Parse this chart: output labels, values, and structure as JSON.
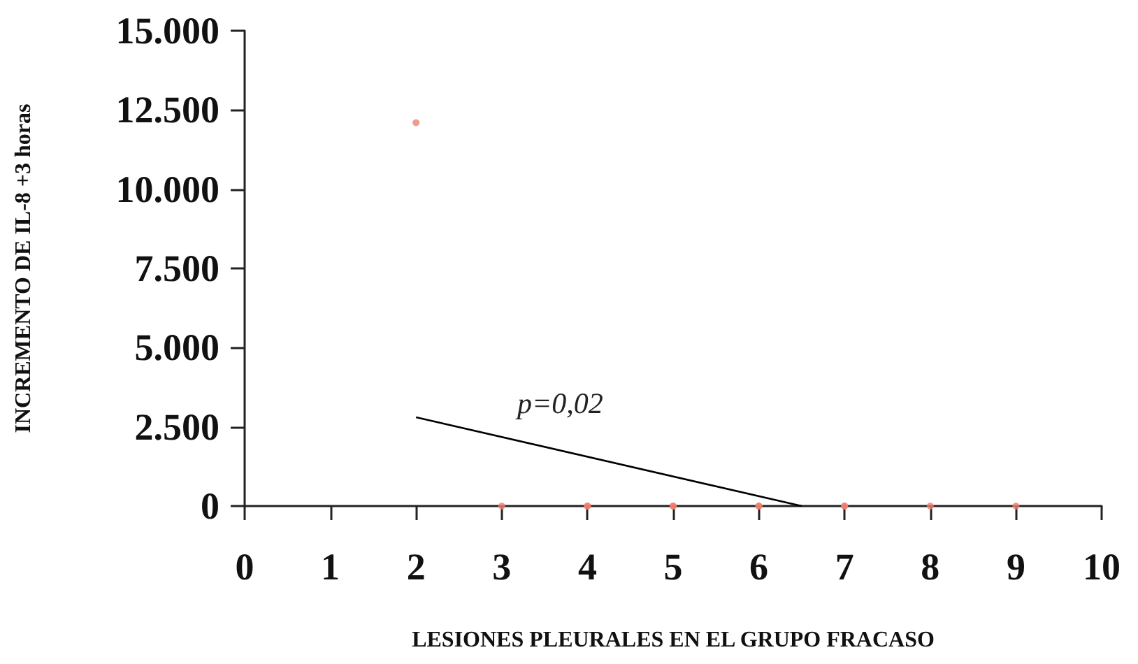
{
  "chart_data": {
    "type": "scatter",
    "xlabel": "LESIONES PLEURALES EN EL GRUPO FRACASO",
    "ylabel": "INCREMENTO DE IL-8 +3 horas",
    "series": [
      {
        "color": "#f08070",
        "x": [
          2,
          3,
          4,
          4,
          5,
          5,
          6,
          6,
          7,
          7,
          8,
          9
        ],
        "values": [
          12100,
          0,
          0,
          0,
          0,
          0,
          0,
          0,
          0,
          0,
          0,
          0
        ]
      },
      {
        "type": "line",
        "color": "#000000",
        "marker": "none",
        "x": [
          2,
          6.5
        ],
        "values": [
          2800,
          0
        ]
      }
    ],
    "xlim": [
      0,
      10
    ],
    "xticks": [
      0,
      1,
      2,
      3,
      4,
      5,
      6,
      7,
      8,
      9,
      10
    ],
    "ylim": [
      0,
      15000
    ],
    "yticks": [
      {
        "value": 0,
        "label": "0"
      },
      {
        "value": 2500,
        "label": "2.500"
      },
      {
        "value": 5000,
        "label": "5.000"
      },
      {
        "value": 7500,
        "label": "7.500"
      },
      {
        "value": 10000,
        "label": "10.000"
      },
      {
        "value": 12500,
        "label": "12.500"
      },
      {
        "value": 15000,
        "label": "15.000"
      }
    ],
    "annotations": [
      "p=0,02"
    ],
    "grid": false,
    "marker": "circle"
  }
}
